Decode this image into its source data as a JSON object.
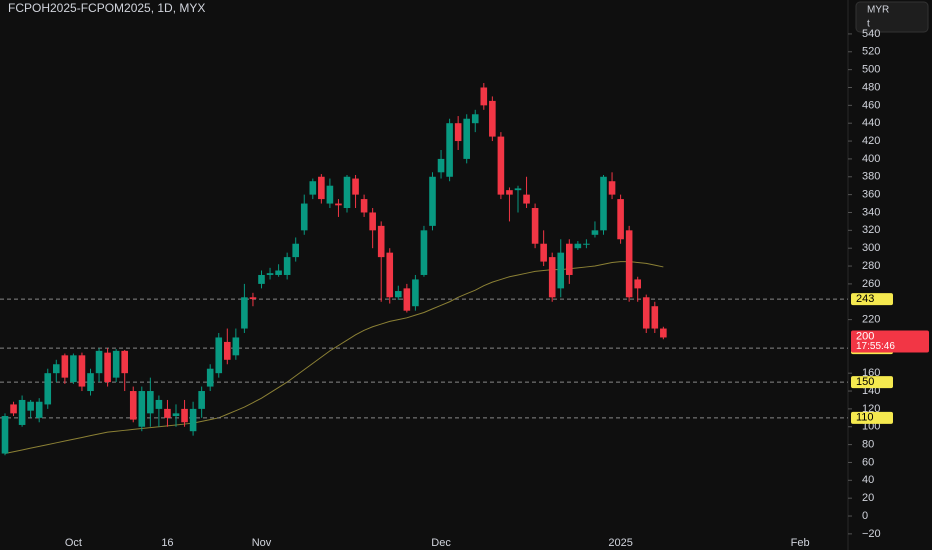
{
  "chart_data": {
    "type": "candlestick",
    "title": "FCPOH2025-FCPOM2025, 1D, MYX",
    "currency": "MYR",
    "unit": "t",
    "categories": [
      null,
      null,
      null,
      null,
      null,
      null,
      null,
      null,
      "Oct",
      null,
      null,
      null,
      null,
      null,
      null,
      null,
      null,
      null,
      null,
      "16",
      null,
      null,
      null,
      null,
      null,
      null,
      null,
      null,
      null,
      null,
      "Nov",
      null,
      null,
      null,
      null,
      null,
      null,
      null,
      null,
      null,
      null,
      null,
      null,
      null,
      null,
      null,
      null,
      null,
      null,
      null,
      null,
      "Dec",
      null,
      null,
      null,
      null,
      null,
      null,
      null,
      null,
      null,
      null,
      null,
      null,
      null,
      null,
      null,
      null,
      null,
      null,
      null,
      null,
      "2025",
      null,
      null,
      null,
      null,
      null,
      null,
      null,
      null,
      null,
      null,
      null,
      null,
      null,
      null,
      null,
      null,
      null,
      null,
      null,
      null,
      "Feb",
      null,
      null,
      null,
      null,
      null
    ],
    "open": [
      70,
      125,
      102,
      118,
      110,
      125,
      160,
      180,
      150,
      180,
      140,
      160,
      183,
      155,
      185,
      140,
      100,
      115,
      120,
      120,
      112,
      120,
      95,
      120,
      145,
      160,
      195,
      180,
      210,
      245,
      260,
      270,
      270,
      270,
      290,
      320,
      360,
      380,
      350,
      350,
      345,
      378,
      355,
      340,
      325,
      295,
      245,
      255,
      235,
      270,
      325,
      385,
      380,
      440,
      400,
      440,
      480,
      465,
      425,
      365,
      365,
      360,
      345,
      305,
      290,
      255,
      305,
      300,
      305,
      315,
      320,
      375,
      355,
      320,
      265,
      245,
      235,
      210,
      null,
      null,
      null,
      null,
      null,
      null,
      null,
      null,
      null,
      null,
      null,
      null,
      null,
      null,
      null,
      null,
      null,
      null,
      null,
      null,
      null
    ],
    "high": [
      115,
      128,
      135,
      130,
      132,
      165,
      175,
      182,
      182,
      183,
      165,
      188,
      188,
      187,
      186,
      145,
      145,
      155,
      135,
      130,
      125,
      130,
      128,
      145,
      170,
      205,
      210,
      210,
      260,
      250,
      275,
      278,
      282,
      295,
      312,
      360,
      378,
      383,
      378,
      355,
      382,
      382,
      360,
      345,
      330,
      300,
      258,
      260,
      270,
      325,
      385,
      410,
      445,
      448,
      450,
      455,
      485,
      470,
      430,
      368,
      370,
      380,
      350,
      320,
      295,
      310,
      310,
      308,
      310,
      330,
      382,
      385,
      360,
      325,
      268,
      248,
      240,
      212,
      null,
      null,
      null,
      null,
      null,
      null,
      null,
      null,
      null,
      null,
      null,
      null,
      null,
      null,
      null,
      null,
      null,
      null,
      null,
      null,
      null
    ],
    "low": [
      68,
      112,
      100,
      110,
      105,
      120,
      150,
      148,
      148,
      140,
      135,
      150,
      145,
      150,
      140,
      105,
      95,
      100,
      100,
      100,
      100,
      100,
      90,
      110,
      140,
      155,
      170,
      175,
      205,
      235,
      255,
      265,
      268,
      265,
      285,
      315,
      355,
      350,
      345,
      335,
      340,
      345,
      335,
      300,
      240,
      238,
      242,
      228,
      230,
      268,
      320,
      378,
      375,
      410,
      395,
      430,
      455,
      420,
      355,
      330,
      340,
      345,
      300,
      280,
      240,
      245,
      260,
      298,
      300,
      312,
      315,
      355,
      305,
      240,
      240,
      205,
      205,
      198,
      null,
      null,
      null,
      null,
      null,
      null,
      null,
      null,
      null,
      null,
      null,
      null,
      null,
      null,
      null,
      null,
      null,
      null,
      null,
      null,
      null
    ],
    "close": [
      112,
      115,
      130,
      128,
      128,
      160,
      170,
      155,
      180,
      145,
      160,
      185,
      150,
      185,
      160,
      108,
      140,
      140,
      130,
      110,
      115,
      105,
      120,
      140,
      165,
      200,
      175,
      200,
      245,
      243,
      270,
      272,
      275,
      290,
      305,
      350,
      375,
      355,
      370,
      348,
      380,
      360,
      340,
      320,
      290,
      245,
      252,
      230,
      265,
      320,
      380,
      400,
      440,
      420,
      445,
      450,
      460,
      425,
      360,
      360,
      367,
      350,
      305,
      285,
      245,
      295,
      270,
      305,
      305,
      320,
      380,
      360,
      310,
      245,
      255,
      210,
      210,
      200,
      null,
      null,
      null,
      null,
      null,
      null,
      null,
      null,
      null,
      null,
      null,
      null,
      null,
      null,
      null,
      null,
      null,
      null,
      null,
      null,
      null
    ],
    "ma": [
      70,
      72,
      74,
      76,
      78,
      80,
      82,
      84,
      86,
      88,
      90,
      92,
      94,
      95,
      96,
      97,
      98,
      99,
      100,
      101,
      102,
      103,
      104,
      106,
      108,
      110,
      114,
      118,
      122,
      127,
      132,
      138,
      144,
      150,
      157,
      164,
      171,
      178,
      185,
      191,
      197,
      203,
      208,
      212,
      215,
      218,
      220,
      222,
      225,
      228,
      232,
      236,
      240,
      245,
      249,
      253,
      258,
      262,
      265,
      268,
      270,
      272,
      274,
      275,
      276,
      276,
      277,
      278,
      279,
      280,
      282,
      284,
      285,
      285,
      284,
      283,
      281,
      279,
      null,
      null,
      null,
      null,
      null,
      null,
      null,
      null,
      null,
      null,
      null,
      null,
      null,
      null,
      null,
      null,
      null,
      null,
      null,
      null,
      null
    ],
    "ylim": [
      -23.5,
      578
    ],
    "yticks": [
      540,
      520,
      500,
      480,
      460,
      440,
      420,
      400,
      380,
      360,
      340,
      320,
      300,
      280,
      260,
      220,
      160,
      140,
      120,
      100,
      80,
      60,
      40,
      20,
      0,
      {
        "value": -20,
        "label": "−20"
      }
    ],
    "levels": [
      243,
      188,
      150,
      110
    ],
    "last_price": 200,
    "countdown": "17:55:46",
    "up_color": "#089981",
    "down_color": "#f23645",
    "ma_color": "#8c8135",
    "level_color": "#f5e94f"
  }
}
